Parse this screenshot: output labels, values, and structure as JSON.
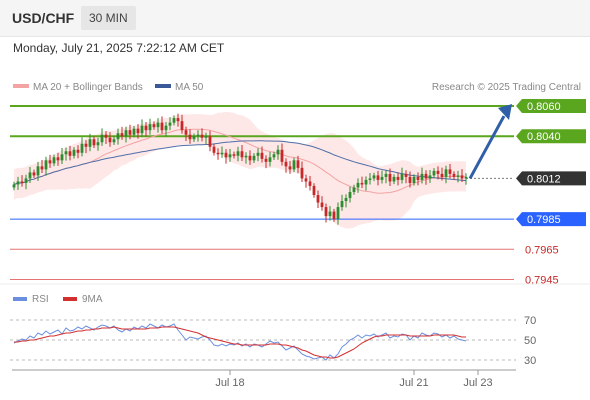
{
  "header": {
    "symbol": "USD/CHF",
    "timeframe": "30 MIN",
    "datetime": "Monday, July 21, 2025 7:22:12 AM CET"
  },
  "legend": {
    "ma20_label": "MA 20 + Bollinger Bands",
    "ma50_label": "MA 50",
    "source": "Research © 2025 Trading Central",
    "rsi_label": "RSI",
    "ma9_label": "9MA"
  },
  "colors": {
    "ma20": "#f4a3a3",
    "bands": "#fde3e3",
    "ma50": "#4f6fa8",
    "up": "#2e8b2e",
    "down": "#c62828",
    "resistance": "#5aa61e",
    "support": "#2962ff",
    "weak": "#e57373",
    "arrow": "#2f5fa6",
    "rsi": "#6b8fe0",
    "rsi_ma": "#d32f2f"
  },
  "chart_data": {
    "type": "candlestick",
    "ylim": [
      0.7938,
      0.8068
    ],
    "current_price": 0.8012,
    "levels": [
      {
        "value": 0.806,
        "label": "0.8060",
        "kind": "resistance"
      },
      {
        "value": 0.804,
        "label": "0.8040",
        "kind": "resistance"
      },
      {
        "value": 0.8012,
        "label": "0.8012",
        "kind": "current"
      },
      {
        "value": 0.7985,
        "label": "0.7985",
        "kind": "support"
      },
      {
        "value": 0.7965,
        "label": "0.7965",
        "kind": "weak"
      },
      {
        "value": 0.7945,
        "label": "0.7945",
        "kind": "weak"
      }
    ],
    "arrow_target": 0.806,
    "x_ticks": [
      {
        "label": "Jul 18",
        "index": 54
      },
      {
        "label": "Jul 21",
        "index": 100
      },
      {
        "label": "Jul 23",
        "index": 116
      }
    ],
    "closes": [
      0.8008,
      0.801,
      0.8009,
      0.8012,
      0.8016,
      0.8014,
      0.802,
      0.8018,
      0.8024,
      0.8022,
      0.8026,
      0.8024,
      0.8028,
      0.803,
      0.8027,
      0.8031,
      0.8029,
      0.8035,
      0.8033,
      0.8038,
      0.8034,
      0.8036,
      0.8041,
      0.8039,
      0.8036,
      0.8038,
      0.8042,
      0.804,
      0.8044,
      0.8041,
      0.8045,
      0.8042,
      0.8047,
      0.8044,
      0.8048,
      0.8046,
      0.8049,
      0.8044,
      0.8047,
      0.8049,
      0.8052,
      0.805,
      0.8044,
      0.8041,
      0.8038,
      0.804,
      0.8041,
      0.8039,
      0.804,
      0.8033,
      0.8029,
      0.8028,
      0.8029,
      0.8026,
      0.8028,
      0.8027,
      0.803,
      0.8026,
      0.8027,
      0.8024,
      0.8027,
      0.8029,
      0.8025,
      0.8023,
      0.8026,
      0.8028,
      0.8031,
      0.8023,
      0.802,
      0.8018,
      0.8024,
      0.8019,
      0.8012,
      0.801,
      0.8007,
      0.8001,
      0.7996,
      0.7993,
      0.7987,
      0.799,
      0.7985,
      0.7993,
      0.7997,
      0.7999,
      0.8003,
      0.8006,
      0.8009,
      0.8008,
      0.8011,
      0.8012,
      0.8014,
      0.8011,
      0.8013,
      0.8015,
      0.801,
      0.8013,
      0.8011,
      0.8015,
      0.8013,
      0.8009,
      0.8013,
      0.8011,
      0.8015,
      0.8012,
      0.8014,
      0.8017,
      0.8015,
      0.8013,
      0.8018,
      0.8015,
      0.8013,
      0.8014,
      0.8012,
      0.8013
    ],
    "rsi": {
      "ylim": [
        20,
        80
      ],
      "ticks": [
        "70",
        "50",
        "30"
      ],
      "rsi_values": [
        47,
        49,
        51,
        50,
        54,
        52,
        57,
        55,
        59,
        56,
        58,
        60,
        56,
        62,
        59,
        60,
        63,
        61,
        64,
        62,
        60,
        63,
        65,
        64,
        62,
        64,
        60,
        58,
        61,
        59,
        63,
        61,
        64,
        62,
        66,
        64,
        62,
        65,
        63,
        64,
        66,
        60,
        55,
        50,
        53,
        52,
        51,
        53,
        54,
        50,
        45,
        44,
        46,
        44,
        46,
        45,
        47,
        44,
        46,
        43,
        46,
        45,
        43,
        46,
        49,
        47,
        48,
        44,
        40,
        42,
        44,
        40,
        36,
        34,
        33,
        31,
        32,
        33,
        30,
        35,
        32,
        36,
        43,
        46,
        50,
        52,
        55,
        52,
        55,
        54,
        56,
        53,
        55,
        57,
        52,
        54,
        53,
        56,
        55,
        50,
        54,
        52,
        57,
        55,
        54,
        57,
        56,
        53,
        55,
        52,
        54,
        51,
        50,
        49
      ],
      "ma9_values": [
        48,
        48,
        49,
        49,
        50,
        50,
        51,
        52,
        53,
        54,
        54,
        55,
        56,
        57,
        57,
        58,
        59,
        59,
        60,
        60,
        61,
        61,
        62,
        62,
        62,
        63,
        62,
        61,
        61,
        61,
        61,
        61,
        61,
        61,
        62,
        62,
        62,
        63,
        63,
        63,
        63,
        62,
        61,
        60,
        59,
        58,
        57,
        55,
        53,
        52,
        51,
        50,
        49,
        48,
        47,
        46,
        46,
        45,
        45,
        45,
        45,
        45,
        45,
        45,
        46,
        46,
        46,
        45,
        45,
        44,
        43,
        42,
        40,
        39,
        37,
        35,
        34,
        33,
        33,
        32,
        32,
        33,
        35,
        37,
        39,
        41,
        44,
        47,
        49,
        51,
        53,
        54,
        54,
        55,
        55,
        55,
        55,
        55,
        55,
        54,
        54,
        54,
        54,
        54,
        54,
        55,
        55,
        55,
        55,
        55,
        55,
        54,
        53,
        53
      ]
    }
  }
}
